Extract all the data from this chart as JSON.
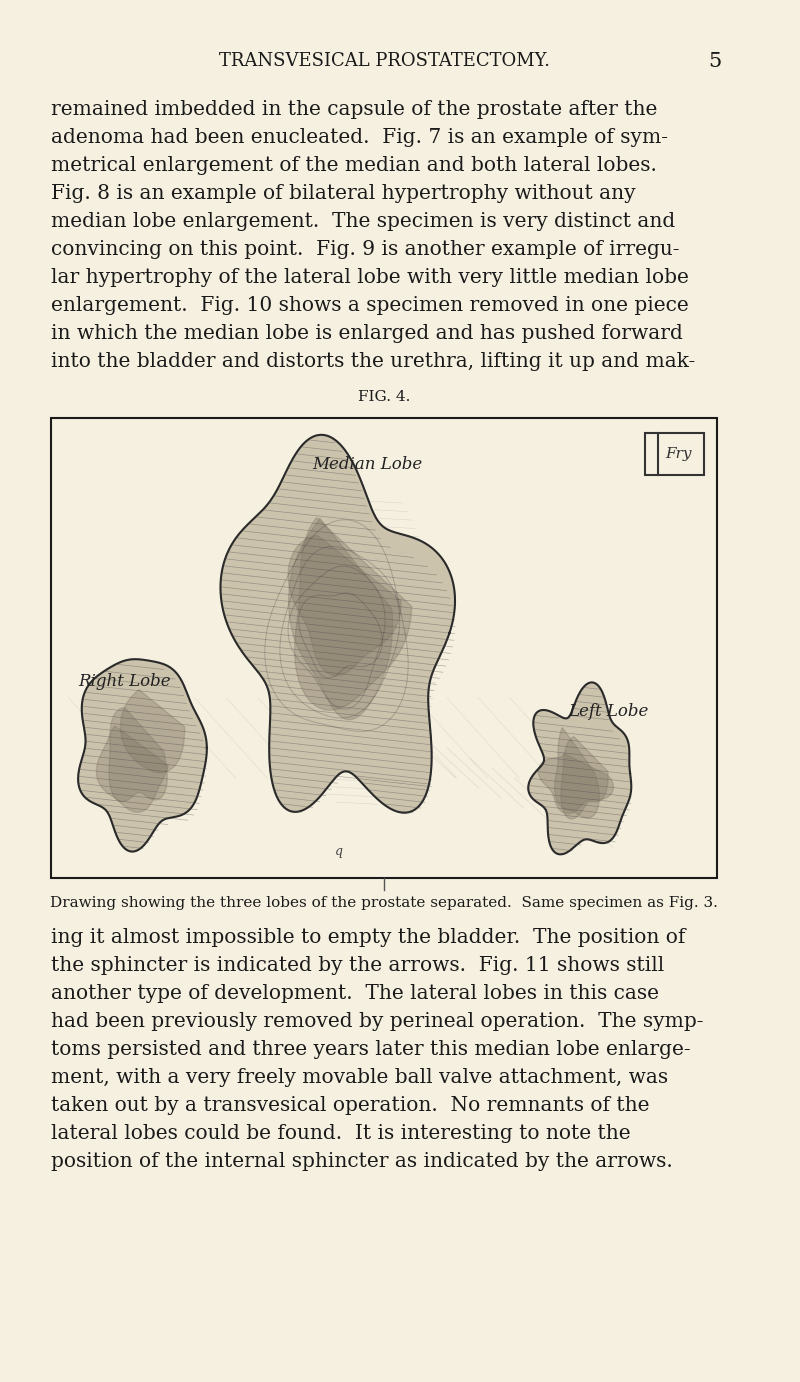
{
  "background_color": "#f5f0e0",
  "page_bg": "#f5f0e0",
  "title_text": "TRANSVESICAL PROSTATECTOMY.",
  "page_number": "5",
  "header_fontsize": 13,
  "body_fontsize": 14.5,
  "fig_caption_fontsize": 11,
  "fig_label": "FIG. 4.",
  "fig_caption": "Drawing showing the three lobes of the prostate separated.  Same specimen as Fig. 3.",
  "paragraph1": "remained imbedded in the capsule of the prostate after the adenoma had been enucleated.  Fig. 7 is an example of sym-\nmetrical enlargement of the median and both lateral lobes.\nFig. 8 is an example of bilateral hypertrophy without any\nmedian lobe enlargement.  The specimen is very distinct and\nconvincing on this point.  Fig. 9 is another example of irregu-\nlar hypertrophy of the lateral lobe with very little median lobe\nenlargement.  Fig. 10 shows a specimen removed in one piece\nin which the median lobe is enlarged and has pushed forward\ninto the bladder and distorts the urethra, lifting it up and mak-",
  "paragraph2": "ing it almost impossible to empty the bladder.  The position of\nthe sphincter is indicated by the arrows.  Fig. 11 shows still\nanother type of development.  The lateral lobes in this case\nhad been previously removed by perineal operation.  The symp-\ntoms persisted and three years later this median lobe enlarge-\nment, with a very freely movable ball valve attachment, was\ntaken out by a transvesical operation.  No remnants of the\nlateral lobes could be found.  It is interesting to note the\nposition of the internal sphincter as indicated by the arrows.",
  "median_lobe_label": "Median Lobe",
  "right_lobe_label": "Right Lobe",
  "left_lobe_label": "Left Lobe",
  "artist_stamp": "Fry",
  "text_color": "#1a1a1a",
  "box_color": "#1a1a1a",
  "figure_bg": "#f5f0e0"
}
